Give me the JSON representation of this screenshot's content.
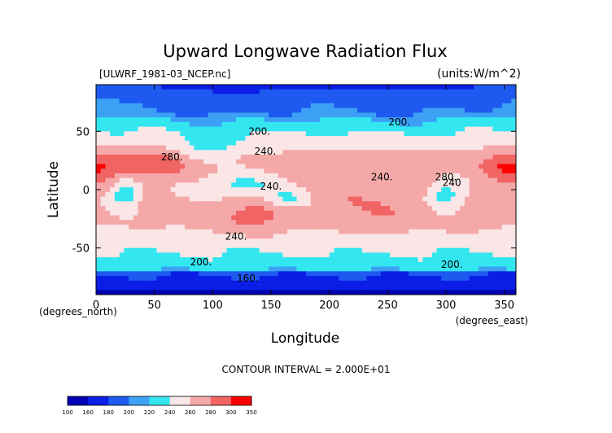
{
  "chart_data": {
    "type": "heatmap",
    "title": "Upward Longwave Radiation Flux",
    "subtitle_left": "[ULWRF_1981-03_NCEP.nc]",
    "subtitle_right": "(units:W/m^2)",
    "xlabel": "Longitude",
    "ylabel": "Latitude",
    "x_unit_label": "(degrees_east)",
    "y_unit_label": "(degrees_north)",
    "xlim": [
      0,
      360
    ],
    "ylim": [
      -90,
      90
    ],
    "x_ticks": [
      "0",
      "50",
      "100",
      "150",
      "200",
      "250",
      "300",
      "350"
    ],
    "y_ticks": [
      "50",
      "0",
      "-50"
    ],
    "contour_interval_label": "CONTOUR INTERVAL = 2.000E+01",
    "contour_labels": [
      {
        "text": "200.",
        "lon": 140,
        "lat": 47
      },
      {
        "text": "200.",
        "lon": 260,
        "lat": 55
      },
      {
        "text": "240.",
        "lon": 145,
        "lat": 30
      },
      {
        "text": "280.",
        "lon": 65,
        "lat": 25
      },
      {
        "text": "240.",
        "lon": 150,
        "lat": 0
      },
      {
        "text": "240.",
        "lon": 245,
        "lat": 8
      },
      {
        "text": "280.",
        "lon": 300,
        "lat": 8
      },
      {
        "text": "240",
        "lon": 305,
        "lat": 3
      },
      {
        "text": "240.",
        "lon": 120,
        "lat": -43
      },
      {
        "text": "200.",
        "lon": 90,
        "lat": -65
      },
      {
        "text": "200.",
        "lon": 305,
        "lat": -67
      },
      {
        "text": "160.",
        "lon": 130,
        "lat": -79
      }
    ],
    "colorbar": {
      "labels": [
        "100",
        "160",
        "180",
        "200",
        "220",
        "240",
        "260",
        "280",
        "300",
        "350"
      ],
      "colors": [
        "#0000b4",
        "#0a1ee6",
        "#1e5af0",
        "#3ca0f5",
        "#33e6f0",
        "#fae6e6",
        "#f5a8a8",
        "#f06464",
        "#ff0000"
      ]
    }
  }
}
